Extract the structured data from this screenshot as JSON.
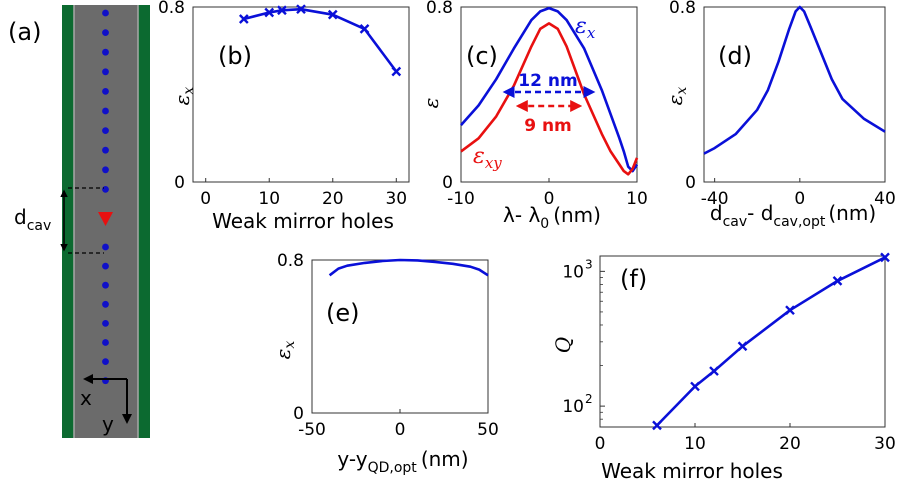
{
  "colors": {
    "blue": "#0a10d8",
    "red": "#e81010",
    "waveguide": "#6b6b6b",
    "cladding": "#0c6a30",
    "hole": "#1010c8",
    "qd": "#e81010"
  },
  "panel_a": {
    "label": "(a)",
    "dcav_main": "d",
    "dcav_sub": "cav",
    "x_axis": "x",
    "y_axis": "y",
    "holes_above": 10,
    "holes_below": 8
  },
  "chart_data": [
    {
      "id": "b",
      "type": "line",
      "label": "(b)",
      "xlabel": "Weak mirror holes",
      "ylabel": "ε_x",
      "xlim": [
        -2,
        32
      ],
      "ylim": [
        0,
        0.8
      ],
      "xticks": [
        "0",
        "10",
        "20",
        "30"
      ],
      "xtick_values": [
        0,
        10,
        20,
        30
      ],
      "yticks": [
        "0",
        "0.8"
      ],
      "ytick_values": [
        0,
        0.8
      ],
      "markers": true,
      "series": [
        {
          "color": "blue",
          "x": [
            6,
            10,
            12,
            15,
            20,
            25,
            30
          ],
          "y": [
            0.745,
            0.775,
            0.785,
            0.79,
            0.765,
            0.7,
            0.505
          ]
        }
      ]
    },
    {
      "id": "c",
      "type": "line",
      "label": "(c)",
      "xlabel_main": "λ- λ",
      "xlabel_sub": "0",
      "xlabel_unit": "(nm)",
      "ylabel": "ε",
      "xlim": [
        -10,
        10
      ],
      "ylim": [
        0,
        0.8
      ],
      "xticks": [
        "-10",
        "0",
        "10"
      ],
      "xtick_values": [
        -10,
        0,
        10
      ],
      "yticks": [
        "0",
        "0.8"
      ],
      "ytick_values": [
        0,
        0.8
      ],
      "legend_ex": "ε_x",
      "legend_exy": "ε_xy",
      "fwhm_blue": "12 nm",
      "fwhm_red": "9 nm",
      "fwhm_blue_range": [
        -5,
        5
      ],
      "fwhm_red_range": [
        -3.5,
        3.5
      ],
      "series": [
        {
          "color": "blue",
          "x": [
            -10,
            -8,
            -6,
            -4,
            -2,
            -1,
            0,
            1,
            2,
            4,
            6,
            7,
            8,
            8.5,
            9,
            9.5,
            10
          ],
          "y": [
            0.26,
            0.35,
            0.47,
            0.61,
            0.74,
            0.78,
            0.795,
            0.78,
            0.74,
            0.61,
            0.42,
            0.31,
            0.2,
            0.14,
            0.07,
            0.05,
            0.08
          ]
        },
        {
          "color": "red",
          "x": [
            -10,
            -8,
            -6,
            -4,
            -2,
            -1,
            0,
            1,
            2,
            4,
            6,
            7,
            8,
            8.5,
            9,
            9.5,
            10
          ],
          "y": [
            0.14,
            0.2,
            0.3,
            0.44,
            0.62,
            0.7,
            0.725,
            0.7,
            0.62,
            0.4,
            0.22,
            0.14,
            0.08,
            0.05,
            0.035,
            0.06,
            0.11
          ]
        }
      ]
    },
    {
      "id": "d",
      "type": "line",
      "label": "(d)",
      "xlabel_main": "d",
      "xlabel_sub1": "cav",
      "xlabel_mid": "- d",
      "xlabel_sub2": "cav,opt",
      "xlabel_unit": "(nm)",
      "ylabel": "ε_x",
      "xlim": [
        -45,
        40
      ],
      "ylim": [
        0,
        0.8
      ],
      "xticks": [
        "-40",
        "0",
        "40"
      ],
      "xtick_values": [
        -40,
        0,
        40
      ],
      "yticks": [
        "0",
        "0.8"
      ],
      "ytick_values": [
        0,
        0.8
      ],
      "series": [
        {
          "color": "blue",
          "x": [
            -45,
            -40,
            -30,
            -20,
            -15,
            -10,
            -5,
            -2,
            0,
            2,
            5,
            10,
            15,
            20,
            30,
            40
          ],
          "y": [
            0.13,
            0.155,
            0.22,
            0.33,
            0.42,
            0.55,
            0.7,
            0.78,
            0.8,
            0.78,
            0.71,
            0.59,
            0.47,
            0.38,
            0.29,
            0.23
          ]
        }
      ]
    },
    {
      "id": "e",
      "type": "line",
      "label": "(e)",
      "xlabel_main": "y-y",
      "xlabel_sub": "QD,opt",
      "xlabel_unit": "(nm)",
      "ylabel": "ε_x",
      "xlim": [
        -50,
        50
      ],
      "ylim": [
        0,
        0.8
      ],
      "xticks": [
        "-50",
        "0",
        "50"
      ],
      "xtick_values": [
        -50,
        0,
        50
      ],
      "yticks": [
        "0",
        "0.8"
      ],
      "ytick_values": [
        0,
        0.8
      ],
      "series": [
        {
          "color": "blue",
          "x": [
            -40,
            -35,
            -30,
            -20,
            -10,
            0,
            10,
            20,
            30,
            40,
            45,
            50
          ],
          "y": [
            0.72,
            0.755,
            0.77,
            0.785,
            0.795,
            0.8,
            0.798,
            0.79,
            0.78,
            0.765,
            0.75,
            0.72
          ]
        }
      ]
    },
    {
      "id": "f",
      "type": "line",
      "label": "(f)",
      "xlabel": "Weak mirror holes",
      "ylabel": "Q",
      "scale_y": "log",
      "xlim": [
        0,
        30
      ],
      "ylim": [
        70,
        1300
      ],
      "xticks": [
        "0",
        "10",
        "20",
        "30"
      ],
      "xtick_values": [
        0,
        10,
        20,
        30
      ],
      "ytick_values": [
        100,
        1000
      ],
      "ytick_base": "10",
      "ytick_exp": [
        "2",
        "3"
      ],
      "markers": true,
      "series": [
        {
          "color": "blue",
          "x": [
            6,
            10,
            12,
            15,
            20,
            25,
            30
          ],
          "y": [
            72,
            140,
            182,
            278,
            515,
            850,
            1270
          ]
        }
      ]
    }
  ]
}
